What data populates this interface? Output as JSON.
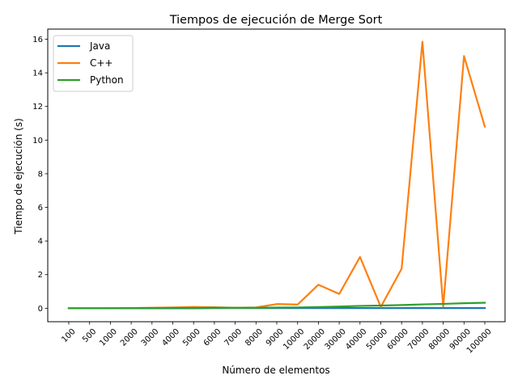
{
  "chart_data": {
    "type": "line",
    "title": "Tiempos de ejecución de Merge Sort",
    "xlabel": "Número de elementos",
    "ylabel": "Tiempo de ejecución (s)",
    "categories": [
      "100",
      "500",
      "1000",
      "2000",
      "3000",
      "4000",
      "5000",
      "6000",
      "7000",
      "8000",
      "9000",
      "10000",
      "20000",
      "30000",
      "40000",
      "50000",
      "60000",
      "70000",
      "80000",
      "90000",
      "100000"
    ],
    "ylim": [
      -0.8,
      16.6
    ],
    "yticks": [
      0,
      2,
      4,
      6,
      8,
      10,
      12,
      14,
      16
    ],
    "grid": false,
    "legend_position": "top-left",
    "series": [
      {
        "name": "Java",
        "color": "#1f77b4",
        "values": [
          0.0,
          0.0,
          0.0,
          0.0,
          0.0,
          0.0,
          0.0,
          0.01,
          0.01,
          0.01,
          0.01,
          0.01,
          0.01,
          0.01,
          0.01,
          0.01,
          0.01,
          0.01,
          0.01,
          0.01,
          0.01
        ]
      },
      {
        "name": "C++",
        "color": "#ff7f0e",
        "values": [
          0.0,
          0.0,
          0.01,
          0.01,
          0.03,
          0.05,
          0.08,
          0.06,
          0.03,
          0.05,
          0.25,
          0.22,
          1.4,
          0.85,
          3.05,
          0.08,
          2.35,
          15.85,
          0.1,
          15.0,
          10.8
        ]
      },
      {
        "name": "Python",
        "color": "#2ca02c",
        "values": [
          0.0,
          0.0,
          0.0,
          0.01,
          0.01,
          0.02,
          0.02,
          0.03,
          0.03,
          0.03,
          0.04,
          0.05,
          0.07,
          0.1,
          0.14,
          0.16,
          0.19,
          0.23,
          0.26,
          0.3,
          0.33
        ]
      }
    ]
  }
}
